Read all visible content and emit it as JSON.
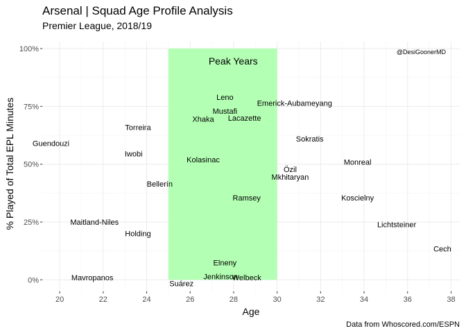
{
  "chart_data": {
    "type": "scatter",
    "title": "Arsenal | Squad Age Profile Analysis",
    "subtitle": "Premier League, 2018/19",
    "caption": "Data from Whoscored.com/ESPN",
    "handle": "@DesiGoonerMD",
    "xlabel": "Age",
    "ylabel": "% Played of Total EPL Minutes",
    "xlim": [
      19.2,
      38.4
    ],
    "ylim": [
      -0.05,
      1.03
    ],
    "x_ticks": [
      20,
      22,
      24,
      26,
      28,
      30,
      32,
      34,
      36,
      38
    ],
    "y_ticks": [
      0,
      0.25,
      0.5,
      0.75,
      1.0
    ],
    "y_tick_labels": [
      "0%",
      "25%",
      "50%",
      "75%",
      "100%"
    ],
    "grid": true,
    "highlight": {
      "label": "Peak Years",
      "x_range": [
        25,
        30
      ],
      "y_range": [
        0,
        1.0
      ],
      "color": "#b3ffb3"
    },
    "points": [
      {
        "name": "Leno",
        "x": 27.6,
        "y": 0.79
      },
      {
        "name": "Emerick-Aubameyang",
        "x": 30.8,
        "y": 0.765
      },
      {
        "name": "Mustafi",
        "x": 27.6,
        "y": 0.73
      },
      {
        "name": "Xhaka",
        "x": 26.6,
        "y": 0.695
      },
      {
        "name": "Lacazette",
        "x": 28.5,
        "y": 0.7
      },
      {
        "name": "Torreira",
        "x": 23.6,
        "y": 0.66
      },
      {
        "name": "Sokratis",
        "x": 31.5,
        "y": 0.61
      },
      {
        "name": "Guendouzi",
        "x": 19.6,
        "y": 0.59
      },
      {
        "name": "Iwobi",
        "x": 23.4,
        "y": 0.545
      },
      {
        "name": "Kolasinac",
        "x": 26.6,
        "y": 0.52
      },
      {
        "name": "Monreal",
        "x": 33.7,
        "y": 0.51
      },
      {
        "name": "Özil",
        "x": 30.6,
        "y": 0.478
      },
      {
        "name": "Mkhitaryan",
        "x": 30.6,
        "y": 0.445
      },
      {
        "name": "Bellerín",
        "x": 24.6,
        "y": 0.415
      },
      {
        "name": "Ramsey",
        "x": 28.6,
        "y": 0.355
      },
      {
        "name": "Koscielny",
        "x": 33.7,
        "y": 0.355
      },
      {
        "name": "Maitland-Niles",
        "x": 21.6,
        "y": 0.25
      },
      {
        "name": "Lichtsteiner",
        "x": 35.5,
        "y": 0.24
      },
      {
        "name": "Holding",
        "x": 23.6,
        "y": 0.2
      },
      {
        "name": "Cech",
        "x": 37.6,
        "y": 0.135
      },
      {
        "name": "Elneny",
        "x": 27.6,
        "y": 0.075
      },
      {
        "name": "Mavropanos",
        "x": 21.5,
        "y": 0.01
      },
      {
        "name": "Jenkinson",
        "x": 27.4,
        "y": 0.015
      },
      {
        "name": "Welbeck",
        "x": 28.6,
        "y": 0.01
      },
      {
        "name": "Suárez",
        "x": 25.6,
        "y": -0.015
      }
    ]
  }
}
